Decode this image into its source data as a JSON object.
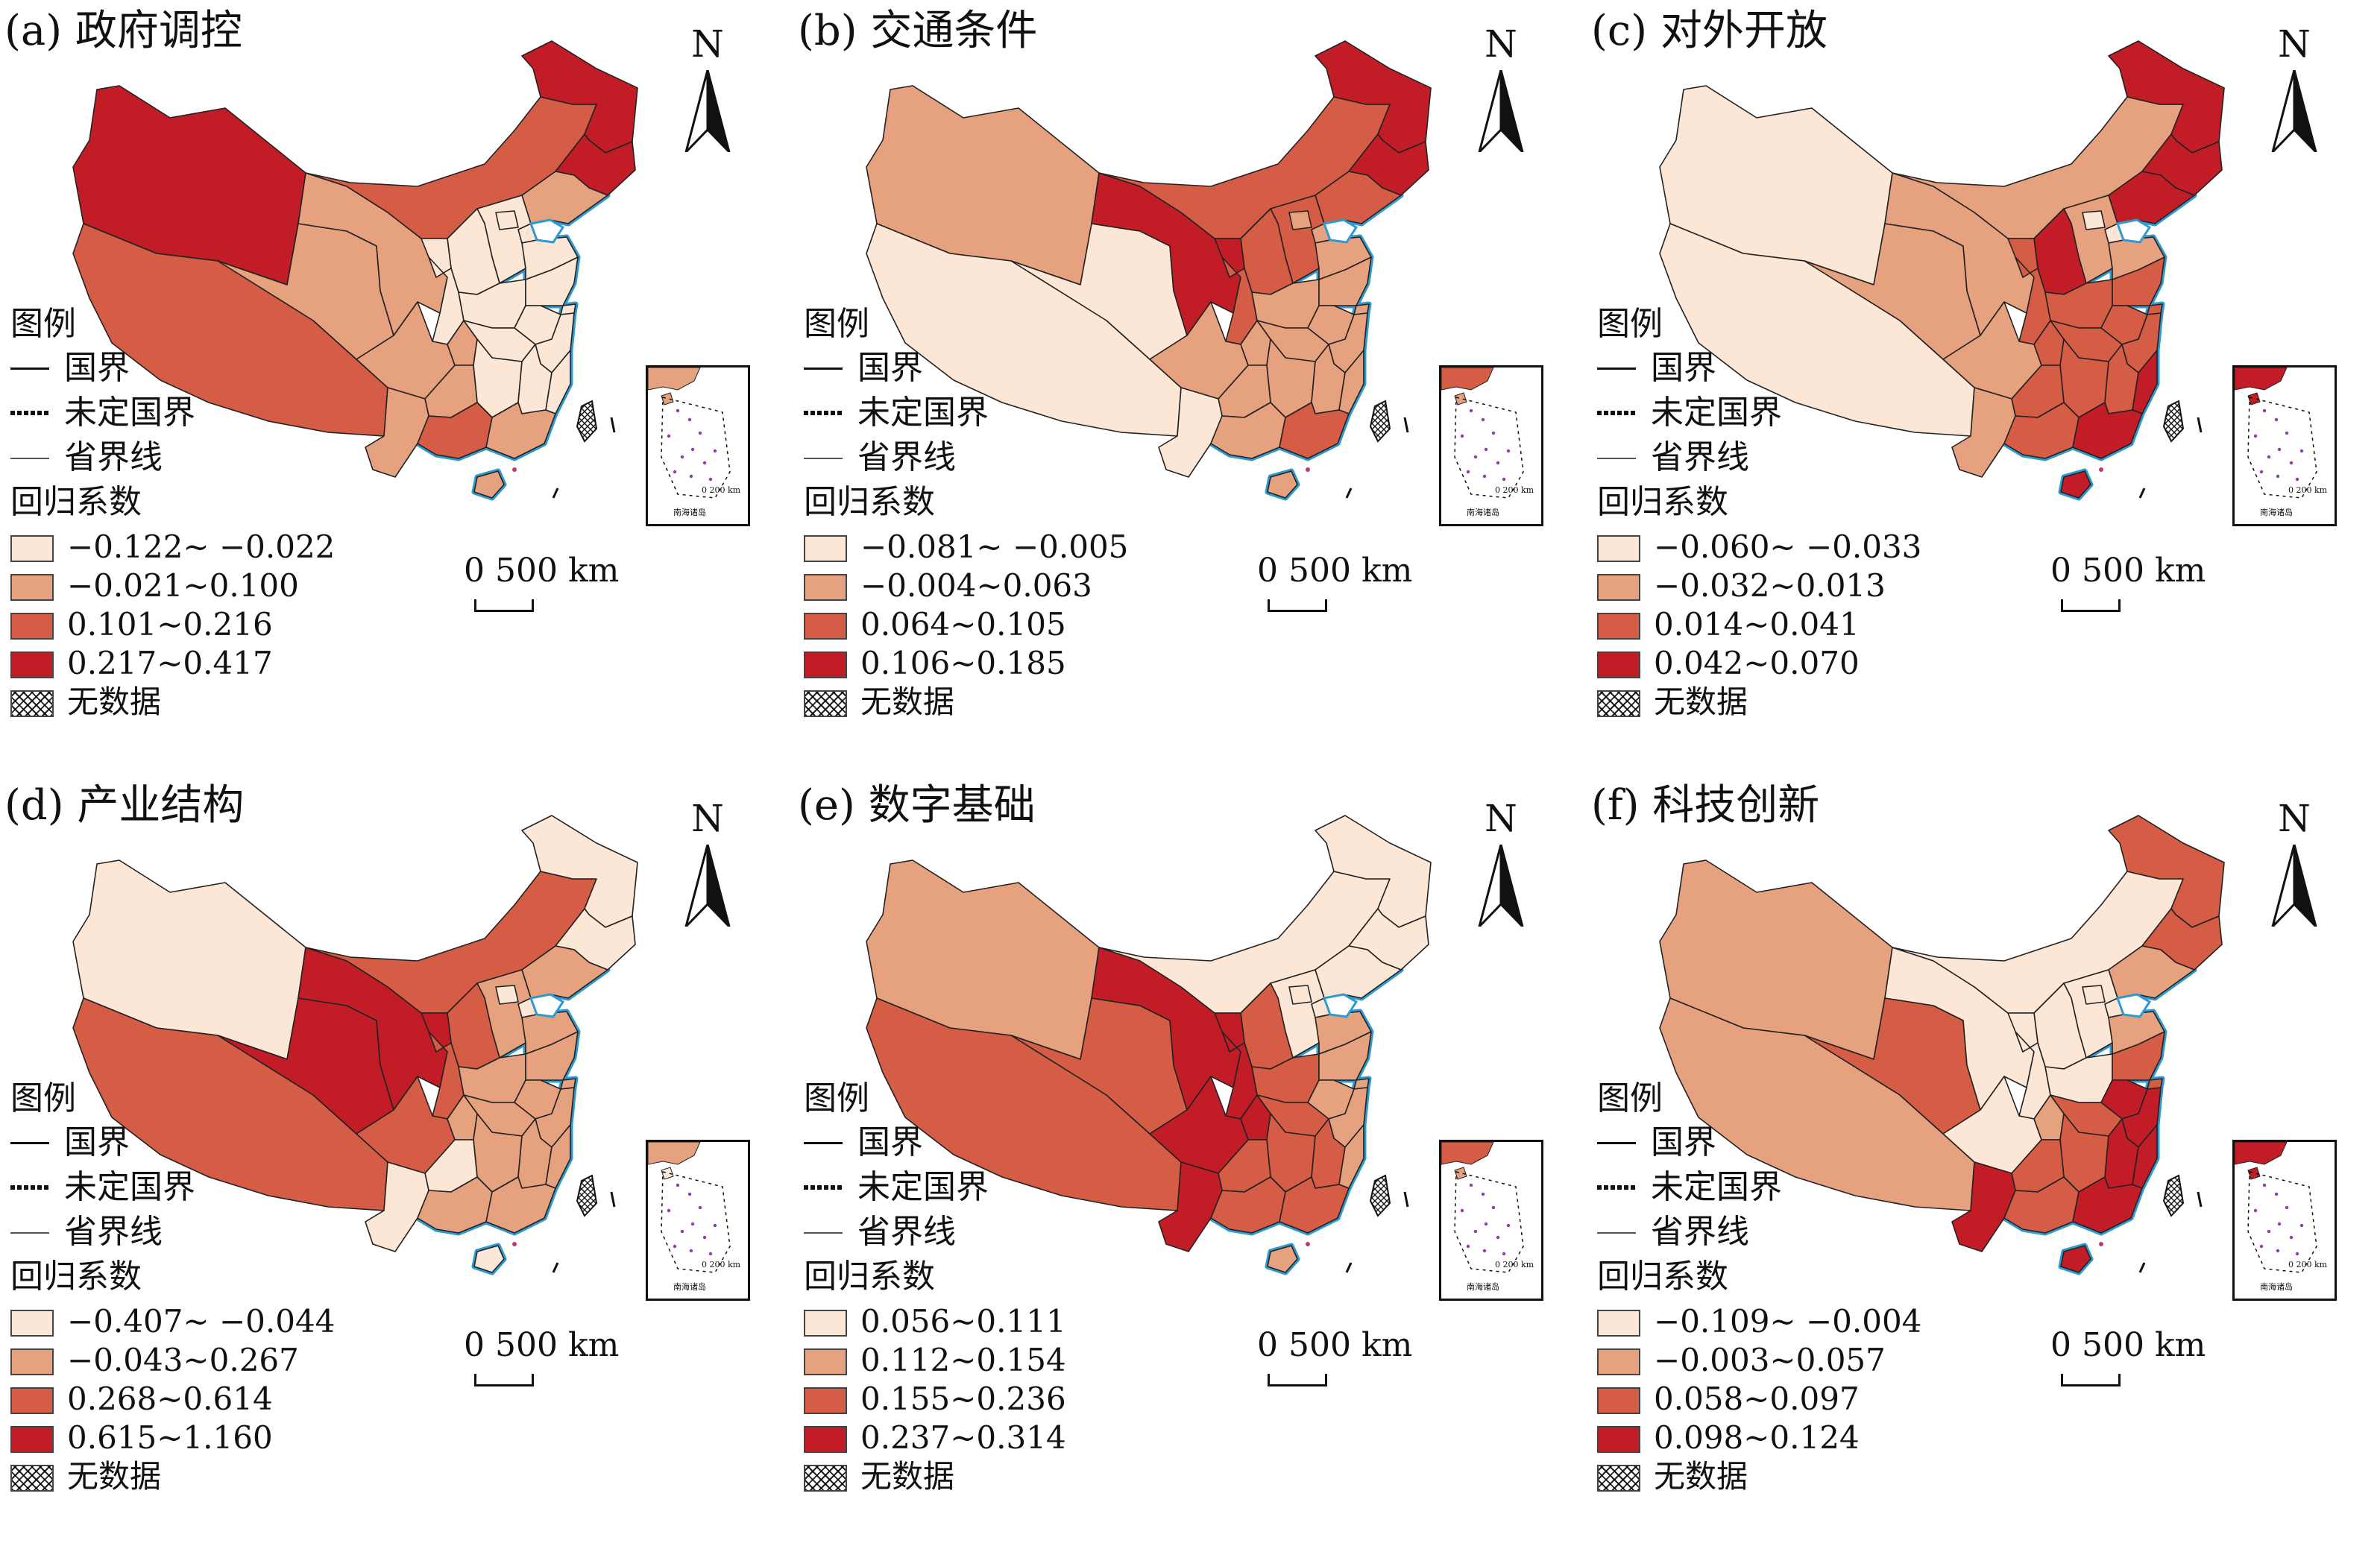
{
  "colors": {
    "class1": "#fce6d5",
    "class2": "#e6a17f",
    "class3": "#d55c45",
    "class4": "#c21d27",
    "coastline": "#2f9ad2",
    "border": "#222222"
  },
  "common": {
    "north": "N",
    "legend_title": "图例",
    "national_border": "国界",
    "undetermined_border": "未定国界",
    "provincial_border": "省界线",
    "coef_title": "回归系数",
    "no_data": "无数据",
    "scale_label": "0  500 km",
    "inset_scale": "0    200 km",
    "inset_label": "南海诸岛"
  },
  "panels": [
    {
      "title": "(a) 政府调控",
      "classes": [
        "−0.122~ −0.022",
        "−0.021~0.100",
        "0.101~0.216",
        "0.217~0.417"
      ],
      "regions": {
        "xj": 4,
        "xz": 3,
        "qh": 2,
        "gs": 2,
        "nm": 3,
        "hlj": 4,
        "jl": 4,
        "ln": 2,
        "hb": 1,
        "bj": 1,
        "tj": 1,
        "sd": 1,
        "sx": 1,
        "sn": 1,
        "nx": 1,
        "hn": 1,
        "js": 1,
        "sh": 1,
        "ah": 1,
        "zj": 1,
        "sc": 2,
        "cq": 2,
        "hub": 1,
        "hun": 1,
        "jx": 1,
        "fj": 1,
        "gz": 2,
        "yn": 2,
        "gx": 3,
        "gd": 2,
        "hi": 2
      }
    },
    {
      "title": "(b) 交通条件",
      "classes": [
        "−0.081~ −0.005",
        "−0.004~0.063",
        "0.064~0.105",
        "0.106~0.185"
      ],
      "regions": {
        "xj": 2,
        "xz": 1,
        "qh": 1,
        "gs": 4,
        "nm": 3,
        "hlj": 4,
        "jl": 4,
        "ln": 3,
        "hb": 3,
        "bj": 2,
        "tj": 2,
        "sd": 2,
        "sx": 3,
        "sn": 3,
        "nx": 4,
        "hn": 2,
        "js": 2,
        "sh": 2,
        "ah": 2,
        "zj": 2,
        "sc": 2,
        "cq": 2,
        "hub": 2,
        "hun": 2,
        "jx": 2,
        "fj": 2,
        "gz": 2,
        "yn": 1,
        "gx": 2,
        "gd": 3,
        "hi": 2
      }
    },
    {
      "title": "(c) 对外开放",
      "classes": [
        "−0.060~ −0.033",
        "−0.032~0.013",
        "0.014~0.041",
        "0.042~0.070"
      ],
      "regions": {
        "xj": 1,
        "xz": 1,
        "qh": 2,
        "gs": 2,
        "nm": 2,
        "hlj": 4,
        "jl": 4,
        "ln": 4,
        "hb": 2,
        "bj": 1,
        "tj": 1,
        "sd": 2,
        "sx": 4,
        "sn": 3,
        "nx": 3,
        "hn": 3,
        "js": 3,
        "sh": 3,
        "ah": 3,
        "zj": 3,
        "sc": 2,
        "cq": 3,
        "hub": 3,
        "hun": 3,
        "jx": 3,
        "fj": 4,
        "gz": 3,
        "yn": 2,
        "gx": 3,
        "gd": 4,
        "hi": 4
      }
    },
    {
      "title": "(d) 产业结构",
      "classes": [
        "−0.407~ −0.044",
        "−0.043~0.267",
        "0.268~0.614",
        "0.615~1.160"
      ],
      "regions": {
        "xj": 1,
        "xz": 3,
        "qh": 4,
        "gs": 4,
        "nm": 3,
        "hlj": 1,
        "jl": 1,
        "ln": 2,
        "hb": 2,
        "bj": 1,
        "tj": 1,
        "sd": 2,
        "sx": 3,
        "sn": 3,
        "nx": 4,
        "hn": 2,
        "js": 2,
        "sh": 2,
        "ah": 2,
        "zj": 2,
        "sc": 3,
        "cq": 2,
        "hub": 2,
        "hun": 2,
        "jx": 2,
        "fj": 2,
        "gz": 1,
        "yn": 1,
        "gx": 2,
        "gd": 2,
        "hi": 1
      }
    },
    {
      "title": "(e) 数字基础",
      "classes": [
        "0.056~0.111",
        "0.112~0.154",
        "0.155~0.236",
        "0.237~0.314"
      ],
      "regions": {
        "xj": 2,
        "xz": 3,
        "qh": 3,
        "gs": 4,
        "nm": 1,
        "hlj": 1,
        "jl": 1,
        "ln": 1,
        "hb": 1,
        "bj": 1,
        "tj": 1,
        "sd": 2,
        "sx": 3,
        "sn": 4,
        "nx": 4,
        "hn": 3,
        "js": 2,
        "sh": 2,
        "ah": 2,
        "zj": 2,
        "sc": 4,
        "cq": 4,
        "hub": 3,
        "hun": 3,
        "jx": 3,
        "fj": 2,
        "gz": 3,
        "yn": 4,
        "gx": 3,
        "gd": 3,
        "hi": 2
      }
    },
    {
      "title": "(f) 科技创新",
      "classes": [
        "−0.109~ −0.004",
        "−0.003~0.057",
        "0.058~0.097",
        "0.098~0.124"
      ],
      "regions": {
        "xj": 2,
        "xz": 2,
        "qh": 3,
        "gs": 1,
        "nm": 1,
        "hlj": 3,
        "jl": 3,
        "ln": 2,
        "hb": 1,
        "bj": 1,
        "tj": 1,
        "sd": 2,
        "sx": 1,
        "sn": 1,
        "nx": 1,
        "hn": 1,
        "js": 3,
        "sh": 3,
        "ah": 4,
        "zj": 4,
        "sc": 1,
        "cq": 2,
        "hub": 3,
        "hun": 3,
        "jx": 4,
        "fj": 4,
        "gz": 3,
        "yn": 4,
        "gx": 3,
        "gd": 4,
        "hi": 4
      }
    }
  ]
}
